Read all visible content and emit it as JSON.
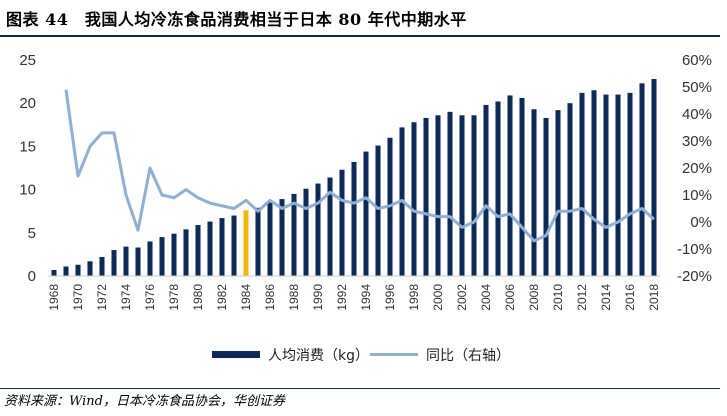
{
  "header": {
    "title": "图表 44　我国人均冷冻食品消费相当于日本 80 年代中期水平"
  },
  "footer": {
    "source": "资料来源：Wind，日本冷冻食品协会，华创证券"
  },
  "colors": {
    "bar": "#0b2a5a",
    "highlight_bar": "#f5b800",
    "line": "#8fb0d6",
    "rule": "#0b2a5a"
  },
  "chart_data": {
    "type": "bar",
    "x": [
      1968,
      1969,
      1970,
      1971,
      1972,
      1973,
      1974,
      1975,
      1976,
      1977,
      1978,
      1979,
      1980,
      1981,
      1982,
      1983,
      1984,
      1985,
      1986,
      1987,
      1988,
      1989,
      1990,
      1991,
      1992,
      1993,
      1994,
      1995,
      1996,
      1997,
      1998,
      1999,
      2000,
      2001,
      2002,
      2003,
      2004,
      2005,
      2006,
      2007,
      2008,
      2009,
      2010,
      2011,
      2012,
      2013,
      2014,
      2015,
      2016,
      2017,
      2018
    ],
    "x_tick_labels": [
      "1968",
      "1970",
      "1972",
      "1974",
      "1976",
      "1978",
      "1980",
      "1982",
      "1984",
      "1986",
      "1988",
      "1990",
      "1992",
      "1994",
      "1996",
      "1998",
      "2000",
      "2002",
      "2004",
      "2006",
      "2008",
      "2010",
      "2012",
      "2014",
      "2016",
      "2018"
    ],
    "highlight_x": 1984,
    "series": [
      {
        "name": "人均消费（kg）",
        "type": "bar",
        "axis": "left",
        "values": [
          0.7,
          1.1,
          1.3,
          1.7,
          2.2,
          3.0,
          3.4,
          3.3,
          4.0,
          4.5,
          4.9,
          5.4,
          5.9,
          6.3,
          6.7,
          7.0,
          7.6,
          7.9,
          8.5,
          8.9,
          9.5,
          10.1,
          10.7,
          11.4,
          12.3,
          13.2,
          14.4,
          15.1,
          16.0,
          17.2,
          17.8,
          18.3,
          18.6,
          19.0,
          18.6,
          18.6,
          19.8,
          20.2,
          20.9,
          20.6,
          19.3,
          18.3,
          19.2,
          20.0,
          21.2,
          21.5,
          21.0,
          21.0,
          21.2,
          22.3,
          22.8
        ]
      },
      {
        "name": "同比（右轴）",
        "type": "line",
        "axis": "right",
        "values": [
          null,
          49,
          17,
          28,
          33,
          33,
          10,
          -3,
          20,
          10,
          9,
          12,
          9,
          7,
          6,
          5,
          8,
          4,
          8,
          5,
          7,
          5,
          7,
          11,
          8,
          7,
          9,
          5,
          6,
          8,
          4,
          3,
          2,
          2,
          -2,
          0,
          6,
          2,
          3,
          -2,
          -7,
          -5,
          4,
          4,
          5,
          1,
          -2,
          0,
          3,
          5,
          1
        ]
      }
    ],
    "ylim_left": [
      0,
      25
    ],
    "yticks_left": [
      0,
      5,
      10,
      15,
      20,
      25
    ],
    "ylim_right": [
      -20,
      60
    ],
    "yticks_right": [
      "-20%",
      "-10%",
      "0%",
      "10%",
      "20%",
      "30%",
      "40%",
      "50%",
      "60%"
    ],
    "legend_position": "bottom",
    "grid": false
  }
}
